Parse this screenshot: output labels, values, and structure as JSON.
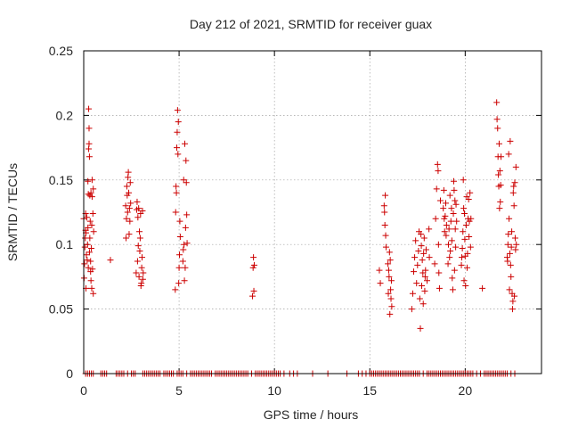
{
  "chart_data": {
    "type": "scatter",
    "title": "Day 212 of 2021, SRMTID for receiver guax",
    "xlabel": "GPS time / hours",
    "ylabel": "SRMTID / TECUs",
    "xlim": [
      0,
      24
    ],
    "ylim": [
      0,
      0.25
    ],
    "xticks": [
      0,
      5,
      10,
      15,
      20
    ],
    "xtick_labels": [
      "0",
      "5",
      "10",
      "15",
      "20"
    ],
    "yticks": [
      0,
      0.05,
      0.1,
      0.15,
      0.2,
      0.25
    ],
    "ytick_labels": [
      "0",
      "0.05",
      "0.1",
      "0.15",
      "0.2",
      "0.25"
    ],
    "grid": true,
    "marker": "+",
    "colors": {
      "series": "#cc0000",
      "grid": "#a0a0a0",
      "text": "#262626",
      "frame": "#000000"
    },
    "series": [
      {
        "name": "SRMTID",
        "points": [
          [
            0.0,
            0.12
          ],
          [
            0.02,
            0.074
          ],
          [
            0.04,
            0.085
          ],
          [
            0.06,
            0.098
          ],
          [
            0.08,
            0.105
          ],
          [
            0.1,
            0.111
          ],
          [
            0.1,
            0.124
          ],
          [
            0.12,
            0.109
          ],
          [
            0.12,
            0.066
          ],
          [
            0.14,
            0.092
          ],
          [
            0.16,
            0.121
          ],
          [
            0.18,
            0.088
          ],
          [
            0.2,
            0.1
          ],
          [
            0.22,
            0.149
          ],
          [
            0.22,
            0.113
          ],
          [
            0.24,
            0.139
          ],
          [
            0.24,
            0.082
          ],
          [
            0.26,
            0.174
          ],
          [
            0.26,
            0.205
          ],
          [
            0.28,
            0.19
          ],
          [
            0.28,
            0.178
          ],
          [
            0.3,
            0.168
          ],
          [
            0.3,
            0.094
          ],
          [
            0.32,
            0.105
          ],
          [
            0.32,
            0.138
          ],
          [
            0.34,
            0.118
          ],
          [
            0.36,
            0.087
          ],
          [
            0.36,
            0.079
          ],
          [
            0.38,
            0.14
          ],
          [
            0.38,
            0.072
          ],
          [
            0.4,
            0.097
          ],
          [
            0.42,
            0.115
          ],
          [
            0.42,
            0.066
          ],
          [
            0.44,
            0.15
          ],
          [
            0.44,
            0.137
          ],
          [
            0.46,
            0.081
          ],
          [
            0.48,
            0.124
          ],
          [
            0.5,
            0.143
          ],
          [
            0.5,
            0.062
          ],
          [
            0.52,
            0.11
          ],
          [
            1.4,
            0.088
          ],
          [
            2.2,
            0.13
          ],
          [
            2.22,
            0.105
          ],
          [
            2.24,
            0.12
          ],
          [
            2.26,
            0.145
          ],
          [
            2.28,
            0.138
          ],
          [
            2.3,
            0.125
          ],
          [
            2.32,
            0.152
          ],
          [
            2.34,
            0.156
          ],
          [
            2.36,
            0.14
          ],
          [
            2.38,
            0.108
          ],
          [
            2.4,
            0.128
          ],
          [
            2.42,
            0.118
          ],
          [
            2.44,
            0.148
          ],
          [
            2.46,
            0.132
          ],
          [
            2.75,
            0.078
          ],
          [
            2.78,
            0.127
          ],
          [
            2.8,
            0.133
          ],
          [
            2.82,
            0.087
          ],
          [
            2.84,
            0.121
          ],
          [
            2.86,
            0.099
          ],
          [
            2.88,
            0.128
          ],
          [
            2.9,
            0.075
          ],
          [
            2.92,
            0.11
          ],
          [
            2.94,
            0.095
          ],
          [
            2.96,
            0.105
          ],
          [
            2.98,
            0.124
          ],
          [
            3.0,
            0.068
          ],
          [
            3.02,
            0.07
          ],
          [
            3.04,
            0.082
          ],
          [
            3.06,
            0.09
          ],
          [
            3.08,
            0.126
          ],
          [
            3.1,
            0.073
          ],
          [
            3.12,
            0.078
          ],
          [
            4.8,
            0.065
          ],
          [
            4.82,
            0.125
          ],
          [
            4.84,
            0.145
          ],
          [
            4.86,
            0.14
          ],
          [
            4.88,
            0.175
          ],
          [
            4.9,
            0.187
          ],
          [
            4.92,
            0.204
          ],
          [
            4.94,
            0.17
          ],
          [
            4.96,
            0.195
          ],
          [
            4.98,
            0.07
          ],
          [
            5.0,
            0.082
          ],
          [
            5.02,
            0.092
          ],
          [
            5.04,
            0.118
          ],
          [
            5.06,
            0.106
          ],
          [
            5.2,
            0.087
          ],
          [
            5.22,
            0.096
          ],
          [
            5.24,
            0.15
          ],
          [
            5.26,
            0.1
          ],
          [
            5.28,
            0.072
          ],
          [
            5.3,
            0.178
          ],
          [
            5.32,
            0.082
          ],
          [
            5.34,
            0.113
          ],
          [
            5.36,
            0.165
          ],
          [
            5.38,
            0.148
          ],
          [
            5.4,
            0.123
          ],
          [
            5.42,
            0.101
          ],
          [
            8.85,
            0.06
          ],
          [
            8.88,
            0.082
          ],
          [
            8.9,
            0.09
          ],
          [
            8.92,
            0.064
          ],
          [
            8.94,
            0.084
          ],
          [
            15.5,
            0.08
          ],
          [
            15.55,
            0.07
          ],
          [
            15.75,
            0.13
          ],
          [
            15.77,
            0.125
          ],
          [
            15.79,
            0.115
          ],
          [
            15.81,
            0.138
          ],
          [
            15.83,
            0.107
          ],
          [
            15.85,
            0.098
          ],
          [
            15.95,
            0.085
          ],
          [
            15.97,
            0.062
          ],
          [
            15.99,
            0.08
          ],
          [
            16.01,
            0.075
          ],
          [
            16.03,
            0.094
          ],
          [
            16.05,
            0.046
          ],
          [
            16.07,
            0.088
          ],
          [
            16.09,
            0.065
          ],
          [
            16.11,
            0.058
          ],
          [
            16.13,
            0.072
          ],
          [
            16.15,
            0.052
          ],
          [
            17.2,
            0.05
          ],
          [
            17.25,
            0.062
          ],
          [
            17.3,
            0.079
          ],
          [
            17.35,
            0.09
          ],
          [
            17.4,
            0.103
          ],
          [
            17.45,
            0.07
          ],
          [
            17.5,
            0.084
          ],
          [
            17.55,
            0.095
          ],
          [
            17.58,
            0.11
          ],
          [
            17.62,
            0.058
          ],
          [
            17.65,
            0.035
          ],
          [
            17.68,
            0.108
          ],
          [
            17.7,
            0.099
          ],
          [
            17.72,
            0.068
          ],
          [
            17.75,
            0.088
          ],
          [
            17.78,
            0.078
          ],
          [
            17.8,
            0.054
          ],
          [
            17.82,
            0.093
          ],
          [
            17.85,
            0.105
          ],
          [
            17.88,
            0.064
          ],
          [
            17.9,
            0.075
          ],
          [
            17.92,
            0.08
          ],
          [
            17.95,
            0.096
          ],
          [
            18.0,
            0.072
          ],
          [
            18.1,
            0.112
          ],
          [
            18.12,
            0.09
          ],
          [
            18.4,
            0.085
          ],
          [
            18.45,
            0.12
          ],
          [
            18.5,
            0.143
          ],
          [
            18.55,
            0.162
          ],
          [
            18.58,
            0.157
          ],
          [
            18.6,
            0.1
          ],
          [
            18.62,
            0.078
          ],
          [
            18.65,
            0.066
          ],
          [
            18.7,
            0.134
          ],
          [
            18.85,
            0.128
          ],
          [
            18.88,
            0.142
          ],
          [
            18.9,
            0.12
          ],
          [
            18.92,
            0.11
          ],
          [
            18.95,
            0.122
          ],
          [
            18.98,
            0.132
          ],
          [
            19.0,
            0.107
          ],
          [
            19.02,
            0.115
          ],
          [
            19.1,
            0.085
          ],
          [
            19.12,
            0.1
          ],
          [
            19.15,
            0.112
          ],
          [
            19.18,
            0.09
          ],
          [
            19.2,
            0.138
          ],
          [
            19.22,
            0.095
          ],
          [
            19.25,
            0.118
          ],
          [
            19.28,
            0.128
          ],
          [
            19.3,
            0.103
          ],
          [
            19.32,
            0.074
          ],
          [
            19.35,
            0.065
          ],
          [
            19.38,
            0.124
          ],
          [
            19.4,
            0.149
          ],
          [
            19.42,
            0.142
          ],
          [
            19.44,
            0.08
          ],
          [
            19.46,
            0.134
          ],
          [
            19.48,
            0.112
          ],
          [
            19.5,
            0.098
          ],
          [
            19.52,
            0.131
          ],
          [
            19.55,
            0.118
          ],
          [
            19.8,
            0.084
          ],
          [
            19.82,
            0.09
          ],
          [
            19.85,
            0.097
          ],
          [
            19.88,
            0.11
          ],
          [
            19.9,
            0.15
          ],
          [
            19.92,
            0.128
          ],
          [
            19.94,
            0.072
          ],
          [
            19.96,
            0.124
          ],
          [
            19.98,
            0.104
          ],
          [
            20.0,
            0.091
          ],
          [
            20.02,
            0.068
          ],
          [
            20.05,
            0.115
          ],
          [
            20.08,
            0.137
          ],
          [
            20.1,
            0.082
          ],
          [
            20.12,
            0.093
          ],
          [
            20.15,
            0.12
          ],
          [
            20.18,
            0.135
          ],
          [
            20.2,
            0.106
          ],
          [
            20.22,
            0.118
          ],
          [
            20.25,
            0.14
          ],
          [
            20.28,
            0.098
          ],
          [
            20.3,
            0.12
          ],
          [
            20.9,
            0.066
          ],
          [
            21.65,
            0.21
          ],
          [
            21.67,
            0.197
          ],
          [
            21.7,
            0.19
          ],
          [
            21.72,
            0.168
          ],
          [
            21.74,
            0.154
          ],
          [
            21.76,
            0.145
          ],
          [
            21.78,
            0.178
          ],
          [
            21.8,
            0.128
          ],
          [
            21.82,
            0.157
          ],
          [
            21.84,
            0.133
          ],
          [
            21.86,
            0.146
          ],
          [
            21.88,
            0.168
          ],
          [
            22.2,
            0.09
          ],
          [
            22.22,
            0.087
          ],
          [
            22.24,
            0.1
          ],
          [
            22.26,
            0.108
          ],
          [
            22.28,
            0.17
          ],
          [
            22.3,
            0.12
          ],
          [
            22.32,
            0.065
          ],
          [
            22.34,
            0.093
          ],
          [
            22.36,
            0.18
          ],
          [
            22.38,
            0.084
          ],
          [
            22.4,
            0.075
          ],
          [
            22.42,
            0.098
          ],
          [
            22.44,
            0.11
          ],
          [
            22.46,
            0.062
          ],
          [
            22.48,
            0.05
          ],
          [
            22.5,
            0.056
          ],
          [
            22.52,
            0.14
          ],
          [
            22.54,
            0.145
          ],
          [
            22.56,
            0.13
          ],
          [
            22.58,
            0.06
          ],
          [
            22.6,
            0.148
          ],
          [
            22.62,
            0.105
          ],
          [
            22.64,
            0.096
          ],
          [
            22.66,
            0.16
          ],
          [
            22.68,
            0.1
          ]
        ],
        "zero_value_times": [
          0.1,
          0.2,
          0.3,
          0.4,
          0.5,
          0.9,
          1.0,
          1.1,
          1.2,
          1.7,
          1.8,
          1.9,
          2.0,
          2.1,
          2.3,
          2.5,
          2.6,
          2.7,
          3.1,
          3.2,
          3.3,
          3.4,
          3.5,
          3.6,
          3.7,
          3.8,
          3.9,
          4.0,
          4.2,
          4.3,
          4.4,
          4.5,
          4.6,
          4.7,
          4.9,
          5.0,
          5.1,
          5.2,
          5.4,
          5.6,
          5.7,
          5.8,
          5.9,
          6.0,
          6.1,
          6.2,
          6.3,
          6.4,
          6.5,
          6.6,
          6.7,
          6.9,
          7.0,
          7.1,
          7.2,
          7.3,
          7.4,
          7.5,
          7.6,
          7.7,
          7.8,
          7.9,
          8.0,
          8.1,
          8.2,
          8.3,
          8.4,
          8.5,
          8.6,
          8.8,
          9.0,
          9.1,
          9.2,
          9.3,
          9.4,
          9.5,
          9.6,
          9.7,
          9.8,
          9.9,
          10.0,
          10.1,
          10.2,
          10.3,
          10.5,
          10.8,
          11.0,
          11.2,
          12.0,
          12.8,
          13.8,
          14.4,
          14.6,
          14.8,
          15.0,
          15.1,
          15.2,
          15.3,
          15.4,
          15.5,
          15.6,
          15.7,
          15.8,
          15.9,
          16.0,
          16.1,
          16.2,
          16.3,
          16.4,
          16.5,
          16.6,
          16.7,
          16.8,
          16.9,
          17.0,
          17.1,
          17.2,
          17.3,
          17.4,
          17.5,
          17.6,
          17.8,
          18.0,
          18.1,
          18.2,
          18.3,
          18.4,
          18.5,
          18.6,
          18.7,
          18.8,
          18.9,
          19.0,
          19.1,
          19.2,
          19.3,
          19.4,
          19.5,
          19.6,
          19.7,
          19.8,
          19.9,
          20.0,
          20.1,
          20.2,
          20.3,
          20.4,
          20.6,
          20.8,
          21.0,
          21.1,
          21.2,
          21.3,
          21.4,
          21.5,
          21.6,
          21.7,
          21.8,
          21.9,
          22.0,
          22.1,
          22.2,
          22.4,
          22.6
        ]
      }
    ]
  }
}
